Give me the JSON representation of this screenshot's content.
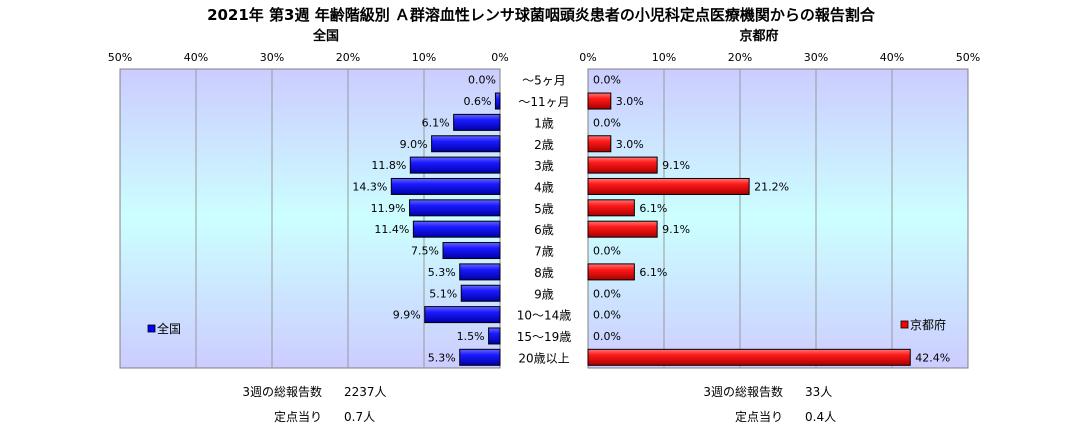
{
  "title": "2021年 第3週 年齢階級別 Ａ群溶血性レンサ球菌咽頭炎患者の小児科定点医療機関からの報告割合",
  "colors": {
    "national": "#0000ff",
    "kyoto": "#ff0000",
    "plot_gradient_top": "#ccccff",
    "plot_gradient_mid": "#ccffff",
    "plot_gradient_bottom": "#ccccff",
    "gridline": "#999999"
  },
  "age_groups": [
    "～5ヶ月",
    "～11ヶ月",
    "1歳",
    "2歳",
    "3歳",
    "4歳",
    "5歳",
    "6歳",
    "7歳",
    "8歳",
    "9歳",
    "10～14歳",
    "15～19歳",
    "20歳以上"
  ],
  "chart_data": [
    {
      "type": "bar",
      "orientation": "horizontal",
      "direction": "right-to-left",
      "title": "全国",
      "legend": "全国",
      "legend_position": "bottom-left",
      "xlim": [
        0,
        50
      ],
      "ticks": [
        "50%",
        "40%",
        "30%",
        "20%",
        "10%",
        "0%"
      ],
      "grid": true,
      "values": [
        0.0,
        0.6,
        6.1,
        9.0,
        11.8,
        14.3,
        11.9,
        11.4,
        7.5,
        5.3,
        5.1,
        9.9,
        1.5,
        5.3
      ],
      "labels": [
        "0.0%",
        "0.6%",
        "6.1%",
        "9.0%",
        "11.8%",
        "14.3%",
        "11.9%",
        "11.4%",
        "7.5%",
        "5.3%",
        "5.1%",
        "9.9%",
        "1.5%",
        "5.3%"
      ]
    },
    {
      "type": "bar",
      "orientation": "horizontal",
      "direction": "left-to-right",
      "title": "京都府",
      "legend": "京都府",
      "legend_position": "bottom-right",
      "xlim": [
        0,
        50
      ],
      "ticks": [
        "0%",
        "10%",
        "20%",
        "30%",
        "40%",
        "50%"
      ],
      "grid": true,
      "values": [
        0.0,
        3.0,
        0.0,
        3.0,
        9.1,
        21.2,
        6.1,
        9.1,
        0.0,
        6.1,
        0.0,
        0.0,
        0.0,
        42.4
      ],
      "labels": [
        "0.0%",
        "3.0%",
        "0.0%",
        "3.0%",
        "9.1%",
        "21.2%",
        "6.1%",
        "9.1%",
        "0.0%",
        "6.1%",
        "0.0%",
        "0.0%",
        "0.0%",
        "42.4%"
      ]
    }
  ],
  "footer": {
    "national": {
      "total_label": "3週の総報告数",
      "total_value": "2237人",
      "per_label": "定点当り",
      "per_value": "0.7人"
    },
    "kyoto": {
      "total_label": "3週の総報告数",
      "total_value": "33人",
      "per_label": "定点当り",
      "per_value": "0.4人"
    }
  }
}
